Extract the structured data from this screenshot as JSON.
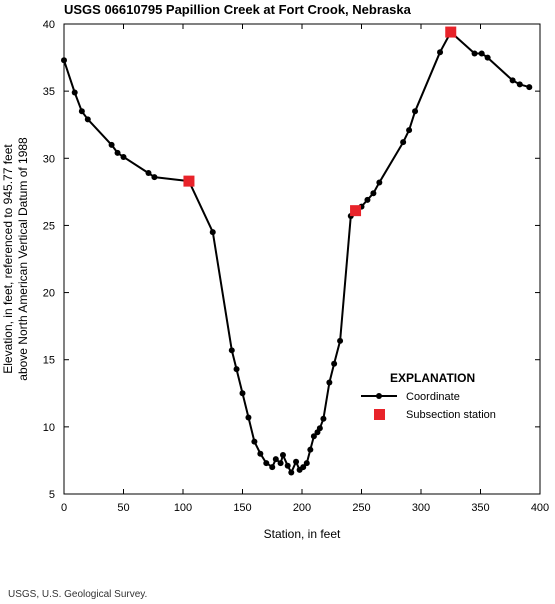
{
  "chart_data": {
    "type": "line",
    "title": "USGS 06610795 Papillion Creek at Fort Crook, Nebraska",
    "xlabel": "Station, in feet",
    "ylabel_line1": "Elevation, in feet, referenced to 945.77 feet",
    "ylabel_line2": "above North American Vertical Datum of 1988",
    "xlim": [
      0,
      400
    ],
    "ylim": [
      5,
      40
    ],
    "xticks": [
      0,
      50,
      100,
      150,
      200,
      250,
      300,
      350,
      400
    ],
    "yticks": [
      5,
      10,
      15,
      20,
      25,
      30,
      35,
      40
    ],
    "grid": false,
    "legend": {
      "title": "EXPLANATION",
      "placement": "right",
      "entries": [
        "Coordinate",
        "Subsection station"
      ]
    },
    "colors": {
      "line": "#000000",
      "subsection": "#e8232a"
    },
    "series": [
      {
        "name": "Coordinate",
        "points": [
          [
            0,
            37.3
          ],
          [
            9,
            34.9
          ],
          [
            15,
            33.5
          ],
          [
            20,
            32.9
          ],
          [
            40,
            31.0
          ],
          [
            45,
            30.4
          ],
          [
            50,
            30.1
          ],
          [
            71,
            28.9
          ],
          [
            76,
            28.6
          ],
          [
            105,
            28.3
          ],
          [
            125,
            24.5
          ],
          [
            141,
            15.7
          ],
          [
            145,
            14.3
          ],
          [
            150,
            12.5
          ],
          [
            155,
            10.7
          ],
          [
            160,
            8.9
          ],
          [
            165,
            8.0
          ],
          [
            170,
            7.3
          ],
          [
            175,
            7.0
          ],
          [
            178,
            7.6
          ],
          [
            182,
            7.3
          ],
          [
            184,
            7.9
          ],
          [
            188,
            7.1
          ],
          [
            191,
            6.6
          ],
          [
            195,
            7.4
          ],
          [
            198,
            6.8
          ],
          [
            201,
            7.0
          ],
          [
            204,
            7.3
          ],
          [
            207,
            8.3
          ],
          [
            210,
            9.3
          ],
          [
            213,
            9.6
          ],
          [
            215,
            9.9
          ],
          [
            218,
            10.6
          ],
          [
            223,
            13.3
          ],
          [
            227,
            14.7
          ],
          [
            232,
            16.4
          ],
          [
            241,
            25.7
          ],
          [
            245,
            26.1
          ],
          [
            250,
            26.4
          ],
          [
            255,
            26.9
          ],
          [
            260,
            27.4
          ],
          [
            265,
            28.2
          ],
          [
            285,
            31.2
          ],
          [
            290,
            32.1
          ],
          [
            295,
            33.5
          ],
          [
            316,
            37.9
          ],
          [
            325,
            39.4
          ],
          [
            345,
            37.8
          ],
          [
            351,
            37.8
          ],
          [
            356,
            37.5
          ],
          [
            377,
            35.8
          ],
          [
            383,
            35.5
          ],
          [
            391,
            35.3
          ]
        ]
      },
      {
        "name": "Subsection station",
        "points": [
          [
            105,
            28.3
          ],
          [
            245,
            26.1
          ],
          [
            325,
            39.4
          ]
        ]
      }
    ]
  },
  "footer_note": "USGS, U.S. Geological Survey."
}
